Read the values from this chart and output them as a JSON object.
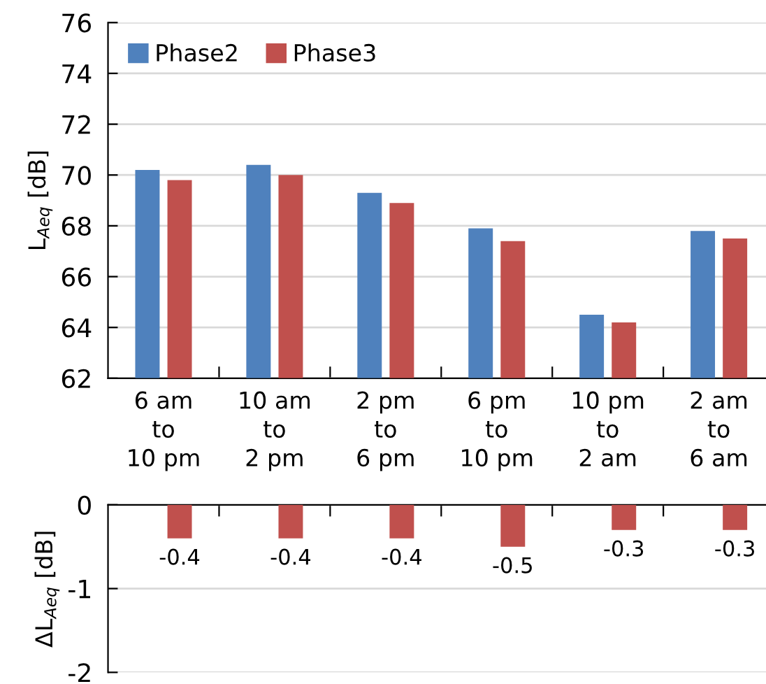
{
  "chart_data": [
    {
      "type": "bar",
      "ylabel": "L$_{Aeq}$ [dB]",
      "categories": [
        "6 am\nto\n10 pm",
        "10 am\nto\n2 pm",
        "2 pm\nto\n6 pm",
        "6 pm\nto\n10 pm",
        "10 pm\nto\n2 am",
        "2 am\nto\n6 am"
      ],
      "series": [
        {
          "name": "Phase2",
          "color": "#4f81bd",
          "values": [
            70.2,
            70.4,
            69.3,
            67.9,
            64.5,
            67.8
          ]
        },
        {
          "name": "Phase3",
          "color": "#c0504d",
          "values": [
            69.8,
            70.0,
            68.9,
            67.4,
            64.2,
            67.5
          ]
        }
      ],
      "ylim": [
        62,
        76
      ],
      "yticks": [
        62,
        64,
        66,
        68,
        70,
        72,
        74,
        76
      ],
      "grid": "y",
      "legend": "top left"
    },
    {
      "type": "bar",
      "ylabel": "ΔL$_{Aeq}$ [dB]",
      "categories": [
        null,
        null,
        null,
        null,
        null,
        null
      ],
      "series": [
        {
          "color": "#c0504d",
          "values": [
            -0.4,
            -0.4,
            -0.4,
            -0.5,
            -0.3,
            -0.3
          ]
        }
      ],
      "ylim": [
        -2,
        0
      ],
      "yticks": [
        -2,
        -1,
        0
      ],
      "grid": "y",
      "data_labels": true
    }
  ]
}
